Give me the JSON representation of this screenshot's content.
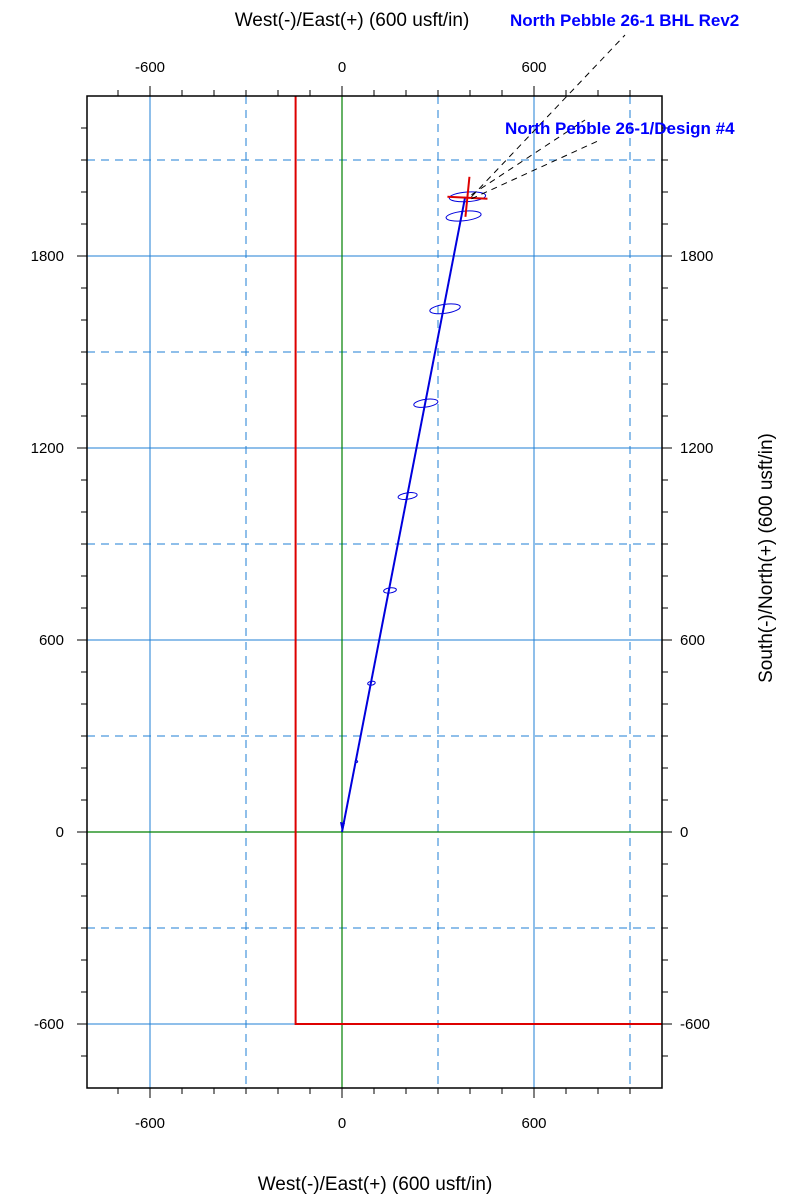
{
  "chart_data": {
    "type": "line",
    "xlabel_top": "West(-)/East(+) (600 usft/in)",
    "xlabel_bottom": "West(-)/East(+) (600 usft/in)",
    "ylabel_right": "South(-)/North(+) (600 usft/in)",
    "xlim": [
      -800,
      1000
    ],
    "ylim": [
      -800,
      2300
    ],
    "x_major_ticks": [
      -600,
      0,
      600
    ],
    "y_major_ticks": [
      -600,
      0,
      600,
      1200,
      1800
    ],
    "x_grid_solid": [
      -600,
      0,
      600
    ],
    "x_grid_dashed": [
      -300,
      300,
      900
    ],
    "y_grid_solid": [
      -600,
      0,
      600,
      1200,
      1800
    ],
    "y_grid_dashed": [
      -300,
      300,
      900,
      1500,
      2100
    ],
    "grid": true,
    "colors": {
      "well_path": "#0000dd",
      "lease_line": "#dd0000",
      "origin_axes": "#008000",
      "grid": "#1f7fd6",
      "annotation": "#0000ff"
    },
    "series": [
      {
        "name": "North Pebble 26-1/Design #4",
        "type": "line",
        "x": [
          0,
          385
        ],
        "y": [
          0,
          1985
        ]
      },
      {
        "type": "polyline",
        "x": [
          -145,
          -145,
          1000
        ],
        "y": [
          2300,
          -600,
          -600
        ]
      }
    ],
    "uncertainty_ellipses": [
      {
        "x": 45,
        "y": 220,
        "rx": 4,
        "ry": 3,
        "rot": 0
      },
      {
        "x": 92,
        "y": 465,
        "rx": 12,
        "ry": 6,
        "rot": 10
      },
      {
        "x": 150,
        "y": 755,
        "rx": 20,
        "ry": 8,
        "rot": 8
      },
      {
        "x": 205,
        "y": 1050,
        "rx": 30,
        "ry": 10,
        "rot": 8
      },
      {
        "x": 262,
        "y": 1340,
        "rx": 38,
        "ry": 12,
        "rot": 8
      },
      {
        "x": 322,
        "y": 1635,
        "rx": 48,
        "ry": 14,
        "rot": 8
      },
      {
        "x": 380,
        "y": 1925,
        "rx": 55,
        "ry": 15,
        "rot": 6
      },
      {
        "x": 392,
        "y": 1985,
        "rx": 57,
        "ry": 15,
        "rot": 4
      }
    ],
    "target": {
      "x": 392,
      "y": 1985
    },
    "annotations": [
      {
        "text": "North Pebble 26-1 BHL Rev2"
      },
      {
        "text": "North Pebble 26-1/Design #4"
      }
    ]
  }
}
